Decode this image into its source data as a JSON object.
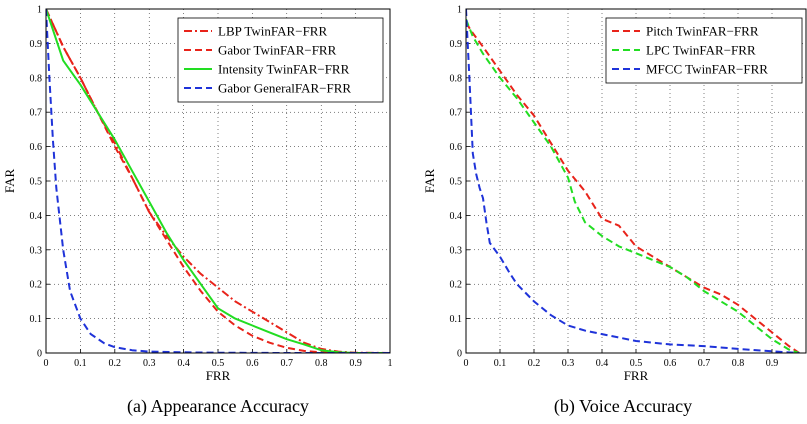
{
  "chart_data": [
    {
      "type": "line",
      "xlabel": "FRR",
      "ylabel": "FAR",
      "xlim": [
        0,
        1
      ],
      "ylim": [
        0,
        1
      ],
      "xticks": [
        "0",
        "0.1",
        "0.2",
        "0.3",
        "0.4",
        "0.5",
        "0.6",
        "0.7",
        "0.8",
        "0.9",
        "1"
      ],
      "yticks": [
        "0",
        "0.1",
        "0.2",
        "0.3",
        "0.4",
        "0.5",
        "0.6",
        "0.7",
        "0.8",
        "0.9",
        "1"
      ],
      "grid": true,
      "legend_position": "top-right",
      "caption": "(a) Appearance Accuracy",
      "series": [
        {
          "name": "LBP TwinFAR−FRR",
          "color": "#e8231a",
          "dash": "dashdot",
          "x": [
            0,
            0.05,
            0.1,
            0.15,
            0.2,
            0.25,
            0.3,
            0.35,
            0.4,
            0.45,
            0.5,
            0.55,
            0.6,
            0.65,
            0.7,
            0.75,
            0.8,
            0.85,
            0.9,
            1.0
          ],
          "y": [
            1.0,
            0.89,
            0.8,
            0.7,
            0.61,
            0.51,
            0.41,
            0.34,
            0.28,
            0.23,
            0.19,
            0.15,
            0.12,
            0.09,
            0.06,
            0.03,
            0.012,
            0.004,
            0.001,
            0
          ]
        },
        {
          "name": "Gabor TwinFAR−FRR",
          "color": "#e8231a",
          "dash": "dashed",
          "x": [
            0,
            0.05,
            0.1,
            0.15,
            0.2,
            0.25,
            0.3,
            0.35,
            0.4,
            0.45,
            0.5,
            0.55,
            0.6,
            0.65,
            0.7,
            0.75,
            0.8,
            0.85,
            1.0
          ],
          "y": [
            1.0,
            0.89,
            0.8,
            0.7,
            0.6,
            0.51,
            0.41,
            0.33,
            0.25,
            0.18,
            0.12,
            0.08,
            0.05,
            0.03,
            0.015,
            0.006,
            0.002,
            0,
            0
          ]
        },
        {
          "name": "Intensity TwinFAR−FRR",
          "color": "#22dd22",
          "dash": "solid",
          "x": [
            0,
            0.05,
            0.1,
            0.15,
            0.2,
            0.25,
            0.3,
            0.35,
            0.4,
            0.45,
            0.5,
            0.55,
            0.6,
            0.65,
            0.7,
            0.75,
            0.8,
            0.85,
            0.9,
            1.0
          ],
          "y": [
            1.0,
            0.85,
            0.78,
            0.7,
            0.62,
            0.53,
            0.44,
            0.35,
            0.27,
            0.2,
            0.13,
            0.1,
            0.08,
            0.06,
            0.04,
            0.025,
            0.008,
            0.002,
            0,
            0
          ]
        },
        {
          "name": "Gabor GeneralFAR−FRR",
          "color": "#1f33d9",
          "dash": "dashed",
          "x": [
            0,
            0.01,
            0.02,
            0.03,
            0.05,
            0.07,
            0.1,
            0.13,
            0.17,
            0.2,
            0.25,
            0.3,
            0.4,
            0.5,
            0.7,
            1.0
          ],
          "y": [
            1.0,
            0.8,
            0.62,
            0.48,
            0.3,
            0.18,
            0.1,
            0.055,
            0.028,
            0.017,
            0.008,
            0.004,
            0.002,
            0.001,
            0,
            0
          ]
        }
      ]
    },
    {
      "type": "line",
      "xlabel": "FRR",
      "ylabel": "FAR",
      "xlim": [
        0,
        1
      ],
      "ylim": [
        0,
        1
      ],
      "xticks": [
        "0",
        "0.1",
        "0.2",
        "0.3",
        "0.4",
        "0.5",
        "0.6",
        "0.7",
        "0.8",
        "0.9"
      ],
      "yticks": [
        "0",
        "0.1",
        "0.2",
        "0.3",
        "0.4",
        "0.5",
        "0.6",
        "0.7",
        "0.8",
        "0.9",
        "1"
      ],
      "grid": true,
      "legend_position": "top-right",
      "caption": "(b) Voice Accuracy",
      "series": [
        {
          "name": "Pitch TwinFAR−FRR",
          "color": "#e8231a",
          "dash": "dashed",
          "x": [
            0,
            0.02,
            0.05,
            0.1,
            0.15,
            0.2,
            0.25,
            0.3,
            0.35,
            0.4,
            0.45,
            0.5,
            0.55,
            0.6,
            0.65,
            0.7,
            0.75,
            0.8,
            0.85,
            0.9,
            0.95,
            0.98
          ],
          "y": [
            0.96,
            0.93,
            0.89,
            0.82,
            0.75,
            0.69,
            0.61,
            0.53,
            0.47,
            0.39,
            0.37,
            0.31,
            0.28,
            0.25,
            0.22,
            0.19,
            0.17,
            0.14,
            0.1,
            0.06,
            0.02,
            0
          ]
        },
        {
          "name": "LPC TwinFAR−FRR",
          "color": "#22dd22",
          "dash": "dashed",
          "x": [
            0,
            0.02,
            0.05,
            0.1,
            0.15,
            0.2,
            0.25,
            0.3,
            0.32,
            0.35,
            0.4,
            0.45,
            0.5,
            0.55,
            0.6,
            0.65,
            0.7,
            0.75,
            0.8,
            0.85,
            0.9,
            0.95,
            0.98
          ],
          "y": [
            0.97,
            0.92,
            0.87,
            0.8,
            0.74,
            0.67,
            0.6,
            0.51,
            0.44,
            0.38,
            0.34,
            0.31,
            0.29,
            0.27,
            0.25,
            0.22,
            0.18,
            0.15,
            0.12,
            0.08,
            0.04,
            0.01,
            0
          ]
        },
        {
          "name": "MFCC TwinFAR−FRR",
          "color": "#1f33d9",
          "dash": "dashed",
          "x": [
            0,
            0.01,
            0.02,
            0.03,
            0.04,
            0.05,
            0.06,
            0.07,
            0.1,
            0.13,
            0.15,
            0.2,
            0.25,
            0.3,
            0.35,
            0.4,
            0.5,
            0.6,
            0.7,
            0.8,
            0.9,
            0.98
          ],
          "y": [
            1.0,
            0.8,
            0.58,
            0.52,
            0.48,
            0.45,
            0.38,
            0.32,
            0.28,
            0.23,
            0.2,
            0.15,
            0.11,
            0.08,
            0.065,
            0.055,
            0.035,
            0.025,
            0.02,
            0.012,
            0.005,
            0
          ]
        }
      ]
    }
  ]
}
